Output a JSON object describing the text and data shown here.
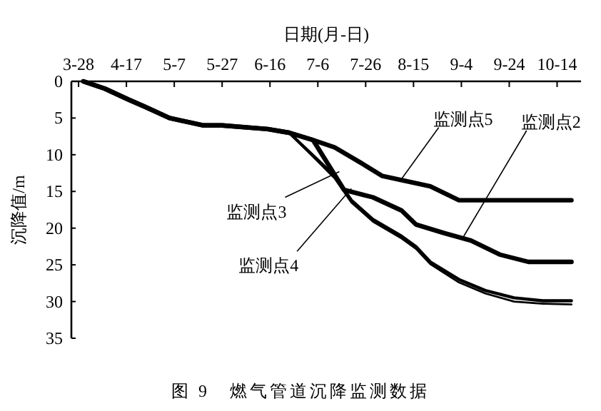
{
  "chart_data": {
    "type": "line",
    "title": "图 9　燃气管道沉降监测数据",
    "xlabel": "日期(月-日)",
    "ylabel": "沉降值/m",
    "xlim": [
      "--03-25",
      "--10-24"
    ],
    "ylim": [
      35,
      0
    ],
    "xticks": [
      {
        "value": "--03-28",
        "label": "3-28"
      },
      {
        "value": "--04-17",
        "label": "4-17"
      },
      {
        "value": "--05-07",
        "label": "5-7"
      },
      {
        "value": "--05-27",
        "label": "5-27"
      },
      {
        "value": "--06-16",
        "label": "6-16"
      },
      {
        "value": "--07-06",
        "label": "7-6"
      },
      {
        "value": "--07-26",
        "label": "7-26"
      },
      {
        "value": "--08-15",
        "label": "8-15"
      },
      {
        "value": "--09-04",
        "label": "9-4"
      },
      {
        "value": "--09-24",
        "label": "9-24"
      },
      {
        "value": "--10-14",
        "label": "10-14"
      }
    ],
    "yticks": [
      0,
      5,
      10,
      15,
      20,
      25,
      30,
      35
    ],
    "grid": false,
    "line_style": "solid",
    "marker": "none",
    "series": [
      {
        "color": "#000000",
        "x": [
          "--03-30",
          "--04-08",
          "--04-18",
          "--04-25",
          "--05-05",
          "--05-19",
          "--05-27",
          "--06-15",
          "--06-24",
          "--07-04",
          "--07-13",
          "--07-25",
          "--08-02",
          "--08-22",
          "--09-03",
          "--10-20"
        ],
        "values": [
          0,
          1,
          2.5,
          3.5,
          5,
          6,
          6,
          6.5,
          7,
          8,
          9,
          11.3,
          12.9,
          14.3,
          16.2,
          16.2
        ]
      },
      {
        "color": "#000000",
        "x": [
          "--03-30",
          "--04-08",
          "--04-18",
          "--04-25",
          "--05-05",
          "--05-19",
          "--05-27",
          "--06-15",
          "--06-24",
          "--07-04",
          "--07-17",
          "--07-29",
          "--08-10",
          "--08-16",
          "--08-28",
          "--09-08",
          "--09-20",
          "--10-02",
          "--10-20"
        ],
        "values": [
          0,
          1,
          2.5,
          3.5,
          5,
          6,
          6,
          6.5,
          7,
          8,
          14.8,
          15.8,
          17.6,
          19.5,
          20.7,
          21.7,
          23.6,
          24.6,
          24.6
        ]
      },
      {
        "color": "#000000",
        "x": [
          "--03-30",
          "--04-08",
          "--04-18",
          "--04-25",
          "--05-05",
          "--05-19",
          "--05-27",
          "--06-15",
          "--06-24",
          "--07-13",
          "--07-20",
          "--07-29",
          "--08-10",
          "--08-16",
          "--08-22",
          "--09-03",
          "--09-14",
          "--09-26",
          "--10-08",
          "--10-20"
        ],
        "values": [
          0,
          1,
          2.5,
          3.5,
          5,
          6,
          6,
          6.5,
          7,
          12.9,
          16.2,
          18.8,
          21.1,
          22.5,
          24.6,
          27,
          28.5,
          29.5,
          29.9,
          29.9
        ]
      },
      {
        "color": "#000000",
        "x": [
          "--03-30",
          "--04-08",
          "--04-18",
          "--04-25",
          "--05-05",
          "--05-19",
          "--05-27",
          "--06-15",
          "--06-24",
          "--07-13",
          "--07-20",
          "--07-29",
          "--08-10",
          "--08-16",
          "--08-22",
          "--09-03",
          "--09-14",
          "--09-26",
          "--10-08",
          "--10-20"
        ],
        "values": [
          0,
          1,
          2.5,
          3.5,
          5,
          6,
          6,
          6.5,
          7,
          13.2,
          16.5,
          19.1,
          21.4,
          22.8,
          24.9,
          27.4,
          28.9,
          30,
          30.3,
          30.4
        ]
      }
    ],
    "annotations": [
      {
        "text": "监测点5",
        "x": "--08-10",
        "y": 13.3
      },
      {
        "text": "监测点2",
        "x": "--09-05",
        "y": 21.1
      },
      {
        "text": "监测点3",
        "x": "--07-15",
        "y": 12.3
      },
      {
        "text": "监测点4",
        "x": "--07-20",
        "y": 14.6
      }
    ]
  }
}
